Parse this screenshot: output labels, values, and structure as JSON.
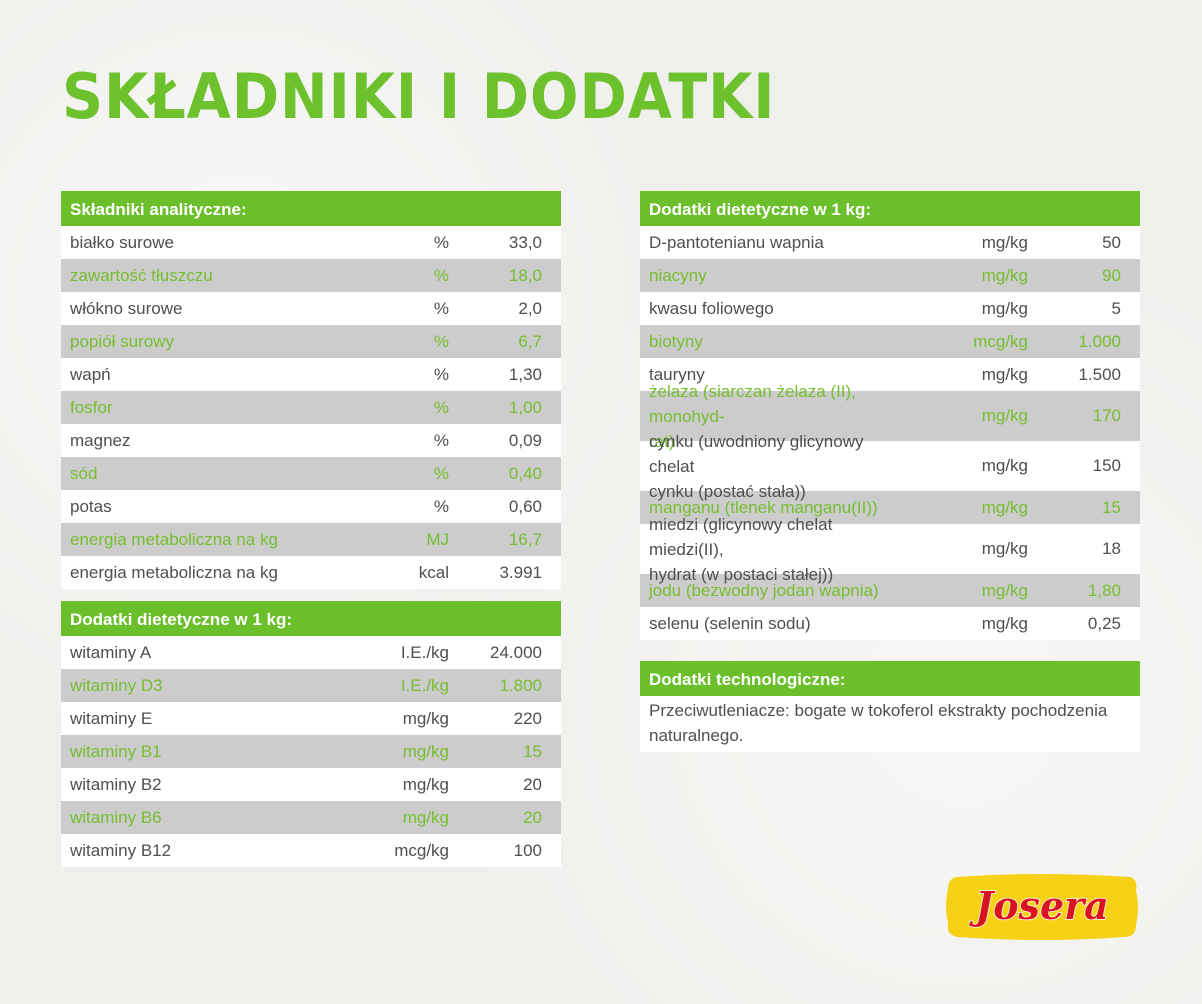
{
  "title": "SKŁADNIKI I DODATKI",
  "analytic": {
    "heading": "Składniki analityczne:",
    "rows": [
      {
        "name": "białko surowe",
        "unit": "%",
        "value": "33,0"
      },
      {
        "name": "zawartość tłuszczu",
        "unit": "%",
        "value": "18,0"
      },
      {
        "name": "włókno surowe",
        "unit": "%",
        "value": "2,0"
      },
      {
        "name": "popiół surowy",
        "unit": "%",
        "value": "6,7"
      },
      {
        "name": "wapń",
        "unit": "%",
        "value": "1,30"
      },
      {
        "name": "fosfor",
        "unit": "%",
        "value": "1,00"
      },
      {
        "name": "magnez",
        "unit": "%",
        "value": "0,09"
      },
      {
        "name": "sód",
        "unit": "%",
        "value": "0,40"
      },
      {
        "name": "potas",
        "unit": "%",
        "value": "0,60"
      },
      {
        "name": "energia metaboliczna na kg",
        "unit": "MJ",
        "value": "16,7"
      },
      {
        "name": "energia metaboliczna na kg",
        "unit": "kcal",
        "value": "3.991"
      }
    ]
  },
  "vitamins": {
    "heading": "Dodatki dietetyczne w 1 kg:",
    "rows": [
      {
        "name": "witaminy A",
        "unit": "I.E./kg",
        "value": "24.000"
      },
      {
        "name": "witaminy D3",
        "unit": "I.E./kg",
        "value": "1.800"
      },
      {
        "name": "witaminy E",
        "unit": "mg/kg",
        "value": "220"
      },
      {
        "name": "witaminy B1",
        "unit": "mg/kg",
        "value": "15"
      },
      {
        "name": "witaminy B2",
        "unit": "mg/kg",
        "value": "20"
      },
      {
        "name": "witaminy B6",
        "unit": "mg/kg",
        "value": "20"
      },
      {
        "name": "witaminy B12",
        "unit": "mcg/kg",
        "value": "100"
      }
    ]
  },
  "additives": {
    "heading": "Dodatki dietetyczne w 1 kg:",
    "rows": [
      {
        "name": "D-pantotenianu wapnia",
        "unit": "mg/kg",
        "value": "50"
      },
      {
        "name": "niacyny",
        "unit": "mg/kg",
        "value": "90"
      },
      {
        "name": "kwasu foliowego",
        "unit": "mg/kg",
        "value": "5"
      },
      {
        "name": "biotyny",
        "unit": "mcg/kg",
        "value": "1.000"
      },
      {
        "name": "tauryny",
        "unit": "mg/kg",
        "value": "1.500"
      },
      {
        "name": "żelaza (siarczan żelaza (II), monohyd-\nrat)",
        "unit": "mg/kg",
        "value": "170"
      },
      {
        "name": "cynku (uwodniony glicynowy chelat\ncynku (postać stała))",
        "unit": "mg/kg",
        "value": "150"
      },
      {
        "name": "manganu (tlenek manganu(II))",
        "unit": "mg/kg",
        "value": "15"
      },
      {
        "name": "miedzi (glicynowy chelat miedzi(II),\nhydrat (w postaci stałej))",
        "unit": "mg/kg",
        "value": "18"
      },
      {
        "name": "jodu (bezwodny jodan wapnia)",
        "unit": "mg/kg",
        "value": "1,80"
      },
      {
        "name": "selenu (selenin sodu)",
        "unit": "mg/kg",
        "value": "0,25"
      }
    ]
  },
  "technological": {
    "heading": "Dodatki technologiczne:",
    "text": "Przeciwutleniacze: bogate w tokoferol ekstrakty pochodzenia naturalnego."
  },
  "logo": {
    "text": "Josera",
    "colors": {
      "red": "#d7141f",
      "yellow": "#f7d116"
    }
  },
  "colors": {
    "green": "#6bbf2b",
    "rowAlt": "#cccccc",
    "text": "#4f4f4f"
  }
}
